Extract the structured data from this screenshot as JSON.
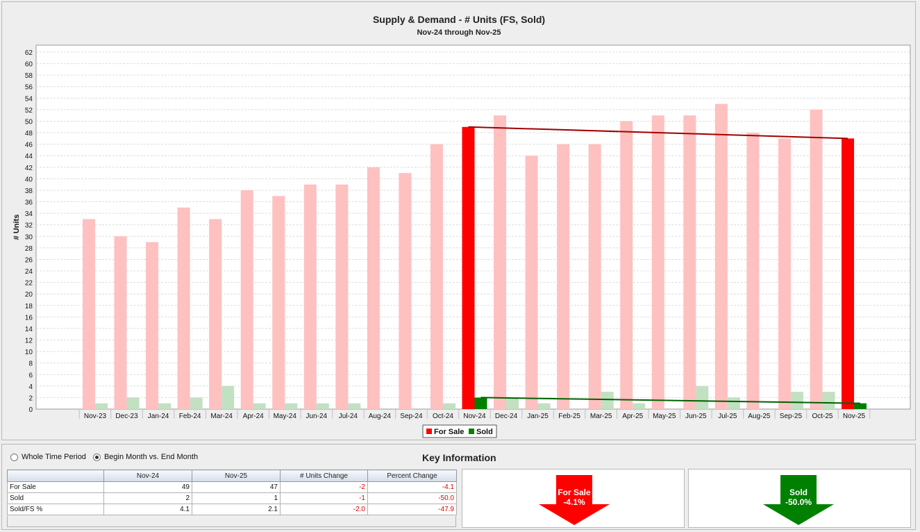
{
  "chart_data": {
    "type": "bar",
    "title": "Supply & Demand - # Units (FS, Sold)",
    "subtitle": "Nov-24 through Nov-25",
    "ylabel": "# Units",
    "ylim": [
      0,
      62
    ],
    "yticks": [
      0,
      2,
      4,
      6,
      8,
      10,
      12,
      14,
      16,
      18,
      20,
      22,
      24,
      26,
      28,
      30,
      32,
      34,
      36,
      38,
      40,
      42,
      44,
      46,
      48,
      50,
      52,
      54,
      56,
      58,
      60,
      62
    ],
    "grid": true,
    "legend_position": "bottom-center",
    "categories": [
      "Nov-23",
      "Dec-23",
      "Jan-24",
      "Feb-24",
      "Mar-24",
      "Apr-24",
      "May-24",
      "Jun-24",
      "Jul-24",
      "Aug-24",
      "Sep-24",
      "Oct-24",
      "Nov-24",
      "Dec-24",
      "Jan-25",
      "Feb-25",
      "Mar-25",
      "Apr-25",
      "May-25",
      "Jun-25",
      "Jul-25",
      "Aug-25",
      "Sep-25",
      "Oct-25",
      "Nov-25"
    ],
    "series": [
      {
        "name": "For Sale",
        "color": "#ff0000",
        "light_color": "#ffc0c0",
        "values": [
          33,
          30,
          29,
          35,
          33,
          38,
          37,
          39,
          39,
          42,
          41,
          46,
          49,
          51,
          44,
          46,
          46,
          50,
          51,
          51,
          53,
          48,
          47,
          52,
          47
        ]
      },
      {
        "name": "Sold",
        "color": "#008000",
        "light_color": "#c2e0c2",
        "values": [
          1,
          2,
          1,
          2,
          4,
          1,
          1,
          1,
          1,
          0,
          0,
          1,
          2,
          2,
          1,
          0,
          3,
          1,
          0,
          4,
          2,
          0,
          3,
          3,
          1
        ]
      }
    ],
    "highlight_categories": [
      "Nov-24",
      "Nov-25"
    ],
    "trend_lines": [
      {
        "series": "For Sale",
        "from": [
          "Nov-24",
          49
        ],
        "to": [
          "Nov-25",
          47
        ],
        "color": "#a00000"
      },
      {
        "series": "Sold",
        "from": [
          "Nov-24",
          2
        ],
        "to": [
          "Nov-25",
          1
        ],
        "color": "#006000"
      }
    ]
  },
  "controls": {
    "radio_whole": "Whole Time Period",
    "radio_begin_end": "Begin Month vs. End Month",
    "selected": "begin_end"
  },
  "key_info": {
    "title": "Key Information",
    "headers": [
      "",
      "Nov-24",
      "Nov-25",
      "# Units Change",
      "Percent Change"
    ],
    "rows": [
      {
        "label": "For Sale",
        "begin": "49",
        "end": "47",
        "units_change": "-2",
        "percent_change": "-4.1"
      },
      {
        "label": "Sold",
        "begin": "2",
        "end": "1",
        "units_change": "-1",
        "percent_change": "-50.0"
      },
      {
        "label": "Sold/FS %",
        "begin": "4.1",
        "end": "2.1",
        "units_change": "-2.0",
        "percent_change": "-47.9"
      }
    ]
  },
  "arrows": [
    {
      "label": "For Sale",
      "value": "-4.1%",
      "color": "#ff0000"
    },
    {
      "label": "Sold",
      "value": "-50.0%",
      "color": "#008000"
    }
  ]
}
